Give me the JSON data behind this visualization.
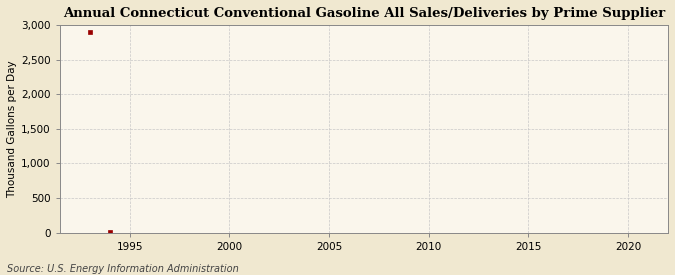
{
  "title": "Annual Connecticut Conventional Gasoline All Sales/Deliveries by Prime Supplier",
  "ylabel": "Thousand Gallons per Day",
  "source": "Source: U.S. Energy Information Administration",
  "background_color": "#f0e8d0",
  "plot_background_color": "#faf6ec",
  "x_data": [
    1993,
    1994
  ],
  "y_data": [
    2900,
    2
  ],
  "marker_color": "#990000",
  "marker_size": 3.5,
  "xlim": [
    1991.5,
    2022
  ],
  "ylim": [
    0,
    3000
  ],
  "xticks": [
    1995,
    2000,
    2005,
    2010,
    2015,
    2020
  ],
  "yticks": [
    0,
    500,
    1000,
    1500,
    2000,
    2500,
    3000
  ],
  "ytick_labels": [
    "0",
    "500",
    "1,000",
    "1,500",
    "2,000",
    "2,500",
    "3,000"
  ],
  "grid_color": "#c8c8c8",
  "title_fontsize": 9.5,
  "label_fontsize": 7.5,
  "tick_fontsize": 7.5,
  "source_fontsize": 7
}
